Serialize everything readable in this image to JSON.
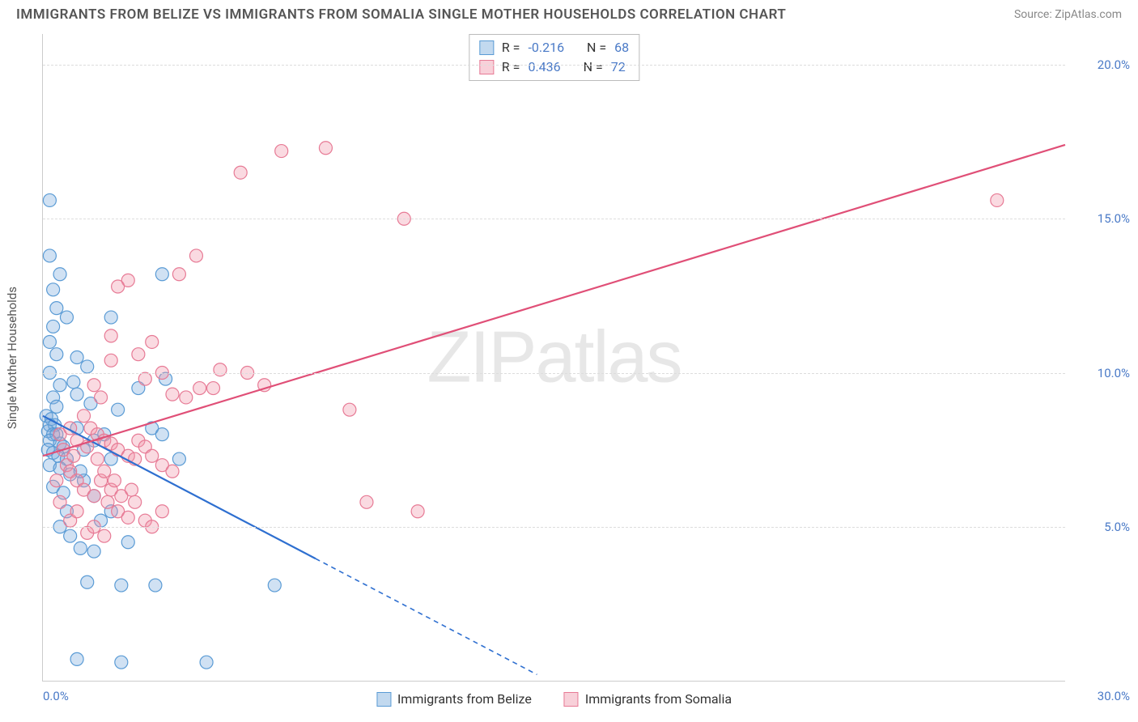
{
  "title": "IMMIGRANTS FROM BELIZE VS IMMIGRANTS FROM SOMALIA SINGLE MOTHER HOUSEHOLDS CORRELATION CHART",
  "source": "Source: ZipAtlas.com",
  "ylabel": "Single Mother Households",
  "watermark_a": "ZIP",
  "watermark_b": "atlas",
  "axes": {
    "xlim": [
      0,
      30
    ],
    "ylim": [
      0,
      21
    ],
    "x_origin_label": "0.0%",
    "x_max_label": "30.0%",
    "yticks": [
      {
        "v": 5,
        "label": "5.0%"
      },
      {
        "v": 10,
        "label": "10.0%"
      },
      {
        "v": 15,
        "label": "15.0%"
      },
      {
        "v": 20,
        "label": "20.0%"
      }
    ],
    "grid_color": "#dddddd",
    "axis_color": "#cccccc",
    "tick_color": "#4a7ac7"
  },
  "series": [
    {
      "key": "belize",
      "label": "Immigrants from Belize",
      "fill": "rgba(120,170,220,0.35)",
      "stroke": "#5a9bd5",
      "line_color": "#2e6fd0",
      "r_label": "R =",
      "r_value": "-0.216",
      "n_label": "N =",
      "n_value": "68",
      "marker_r": 8,
      "regression": {
        "x1": 0,
        "y1": 8.6,
        "x2": 14.5,
        "y2": 0.2,
        "solid_until_x": 8.0
      },
      "points": [
        [
          0.2,
          15.6
        ],
        [
          0.2,
          13.8
        ],
        [
          0.3,
          12.7
        ],
        [
          0.3,
          11.5
        ],
        [
          0.2,
          11.0
        ],
        [
          0.4,
          10.6
        ],
        [
          0.2,
          10.0
        ],
        [
          0.5,
          9.6
        ],
        [
          0.3,
          9.2
        ],
        [
          0.4,
          8.9
        ],
        [
          0.1,
          8.6
        ],
        [
          0.25,
          8.5
        ],
        [
          0.2,
          8.3
        ],
        [
          0.35,
          8.3
        ],
        [
          0.15,
          8.1
        ],
        [
          0.3,
          8.0
        ],
        [
          0.4,
          8.0
        ],
        [
          0.2,
          7.8
        ],
        [
          0.5,
          7.7
        ],
        [
          0.6,
          7.6
        ],
        [
          0.15,
          7.5
        ],
        [
          0.3,
          7.4
        ],
        [
          0.45,
          7.3
        ],
        [
          0.7,
          7.2
        ],
        [
          0.2,
          7.0
        ],
        [
          0.5,
          6.9
        ],
        [
          0.8,
          6.7
        ],
        [
          1.2,
          6.5
        ],
        [
          0.3,
          6.3
        ],
        [
          0.6,
          6.1
        ],
        [
          1.0,
          10.5
        ],
        [
          1.3,
          10.2
        ],
        [
          1.0,
          9.3
        ],
        [
          1.4,
          9.0
        ],
        [
          1.5,
          7.8
        ],
        [
          1.8,
          8.0
        ],
        [
          2.0,
          7.2
        ],
        [
          2.2,
          8.8
        ],
        [
          2.0,
          11.8
        ],
        [
          2.8,
          9.5
        ],
        [
          3.2,
          8.2
        ],
        [
          3.5,
          13.2
        ],
        [
          3.5,
          8.0
        ],
        [
          3.6,
          9.8
        ],
        [
          4.0,
          7.2
        ],
        [
          0.8,
          4.7
        ],
        [
          1.1,
          4.3
        ],
        [
          1.5,
          4.2
        ],
        [
          2.5,
          4.5
        ],
        [
          0.5,
          5.0
        ],
        [
          1.3,
          3.2
        ],
        [
          2.3,
          3.1
        ],
        [
          3.3,
          3.1
        ],
        [
          6.8,
          3.1
        ],
        [
          1.0,
          0.7
        ],
        [
          2.3,
          0.6
        ],
        [
          4.8,
          0.6
        ],
        [
          0.4,
          12.1
        ],
        [
          0.7,
          11.8
        ],
        [
          0.5,
          13.2
        ],
        [
          0.9,
          9.7
        ],
        [
          1.0,
          8.2
        ],
        [
          1.2,
          7.5
        ],
        [
          1.1,
          6.8
        ],
        [
          0.7,
          5.5
        ],
        [
          1.7,
          5.2
        ],
        [
          1.5,
          6.0
        ],
        [
          2.0,
          5.5
        ]
      ]
    },
    {
      "key": "somalia",
      "label": "Immigrants from Somalia",
      "fill": "rgba(240,150,170,0.35)",
      "stroke": "#e77a95",
      "line_color": "#e04f77",
      "r_label": "R =",
      "r_value": "0.436",
      "n_label": "N =",
      "n_value": "72",
      "marker_r": 8,
      "regression": {
        "x1": 0,
        "y1": 7.3,
        "x2": 30,
        "y2": 17.4,
        "solid_until_x": 30
      },
      "points": [
        [
          28.0,
          15.6
        ],
        [
          10.6,
          15.0
        ],
        [
          8.3,
          17.3
        ],
        [
          7.0,
          17.2
        ],
        [
          5.8,
          16.5
        ],
        [
          4.5,
          13.8
        ],
        [
          4.0,
          13.2
        ],
        [
          2.5,
          13.0
        ],
        [
          2.2,
          12.8
        ],
        [
          2.0,
          11.2
        ],
        [
          2.0,
          10.4
        ],
        [
          2.8,
          10.6
        ],
        [
          3.0,
          9.8
        ],
        [
          3.2,
          11.0
        ],
        [
          3.5,
          10.0
        ],
        [
          3.8,
          9.3
        ],
        [
          4.2,
          9.2
        ],
        [
          4.6,
          9.5
        ],
        [
          5.0,
          9.5
        ],
        [
          5.2,
          10.1
        ],
        [
          6.0,
          10.0
        ],
        [
          6.5,
          9.6
        ],
        [
          1.5,
          9.6
        ],
        [
          1.7,
          9.2
        ],
        [
          1.2,
          8.6
        ],
        [
          1.4,
          8.2
        ],
        [
          1.6,
          8.0
        ],
        [
          1.8,
          7.8
        ],
        [
          2.0,
          7.7
        ],
        [
          2.2,
          7.5
        ],
        [
          2.5,
          7.3
        ],
        [
          2.7,
          7.2
        ],
        [
          2.8,
          7.8
        ],
        [
          3.0,
          7.6
        ],
        [
          3.2,
          7.3
        ],
        [
          3.5,
          7.0
        ],
        [
          3.8,
          6.8
        ],
        [
          0.5,
          8.0
        ],
        [
          0.6,
          7.5
        ],
        [
          0.7,
          7.0
        ],
        [
          0.8,
          6.8
        ],
        [
          0.9,
          7.3
        ],
        [
          1.0,
          6.5
        ],
        [
          1.2,
          6.2
        ],
        [
          1.5,
          6.0
        ],
        [
          1.7,
          6.5
        ],
        [
          1.9,
          5.8
        ],
        [
          2.2,
          5.5
        ],
        [
          2.5,
          5.3
        ],
        [
          2.7,
          5.8
        ],
        [
          3.0,
          5.2
        ],
        [
          3.2,
          5.0
        ],
        [
          3.5,
          5.5
        ],
        [
          9.5,
          5.8
        ],
        [
          11.0,
          5.5
        ],
        [
          9.0,
          8.8
        ],
        [
          0.8,
          8.2
        ],
        [
          1.0,
          7.8
        ],
        [
          1.3,
          7.6
        ],
        [
          1.6,
          7.2
        ],
        [
          1.8,
          6.8
        ],
        [
          0.5,
          5.8
        ],
        [
          0.8,
          5.2
        ],
        [
          1.0,
          5.5
        ],
        [
          1.3,
          4.8
        ],
        [
          1.5,
          5.0
        ],
        [
          1.8,
          4.7
        ],
        [
          2.0,
          6.2
        ],
        [
          2.1,
          6.5
        ],
        [
          2.3,
          6.0
        ],
        [
          2.6,
          6.2
        ],
        [
          0.4,
          6.5
        ]
      ]
    }
  ],
  "legend": {
    "swatch_border_blue": "#5a9bd5",
    "swatch_fill_blue": "rgba(120,170,220,0.45)",
    "swatch_border_pink": "#e77a95",
    "swatch_fill_pink": "rgba(240,150,170,0.45)"
  }
}
